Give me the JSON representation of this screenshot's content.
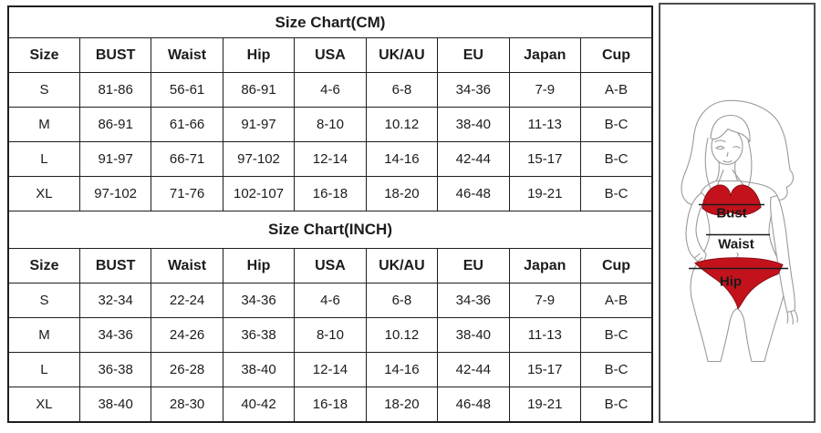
{
  "canvas": {
    "background": "#ffffff"
  },
  "tables": [
    {
      "title": "Size Chart(CM)",
      "columns": [
        "Size",
        "BUST",
        "Waist",
        "Hip",
        "USA",
        "UK/AU",
        "EU",
        "Japan",
        "Cup"
      ],
      "rows": [
        [
          "S",
          "81-86",
          "56-61",
          "86-91",
          "4-6",
          "6-8",
          "34-36",
          "7-9",
          "A-B"
        ],
        [
          "M",
          "86-91",
          "61-66",
          "91-97",
          "8-10",
          "10.12",
          "38-40",
          "11-13",
          "B-C"
        ],
        [
          "L",
          "91-97",
          "66-71",
          "97-102",
          "12-14",
          "14-16",
          "42-44",
          "15-17",
          "B-C"
        ],
        [
          "XL",
          "97-102",
          "71-76",
          "102-107",
          "16-18",
          "18-20",
          "46-48",
          "19-21",
          "B-C"
        ]
      ]
    },
    {
      "title": "Size Chart(INCH)",
      "columns": [
        "Size",
        "BUST",
        "Waist",
        "Hip",
        "USA",
        "UK/AU",
        "EU",
        "Japan",
        "Cup"
      ],
      "rows": [
        [
          "S",
          "32-34",
          "22-24",
          "34-36",
          "4-6",
          "6-8",
          "34-36",
          "7-9",
          "A-B"
        ],
        [
          "M",
          "34-36",
          "24-26",
          "36-38",
          "8-10",
          "10.12",
          "38-40",
          "11-13",
          "B-C"
        ],
        [
          "L",
          "36-38",
          "26-28",
          "38-40",
          "12-14",
          "14-16",
          "42-44",
          "15-17",
          "B-C"
        ],
        [
          "XL",
          "38-40",
          "28-30",
          "40-42",
          "16-18",
          "18-20",
          "46-48",
          "19-21",
          "B-C"
        ]
      ]
    }
  ],
  "figure": {
    "labels": {
      "bust": "Bust",
      "waist": "Waist",
      "hip": "Hip"
    },
    "colors": {
      "bikini_red": "#c4121d",
      "line_art": "#9a9a9a",
      "measure": "#1a1a1a",
      "table_border": "#1e1e1e"
    }
  }
}
